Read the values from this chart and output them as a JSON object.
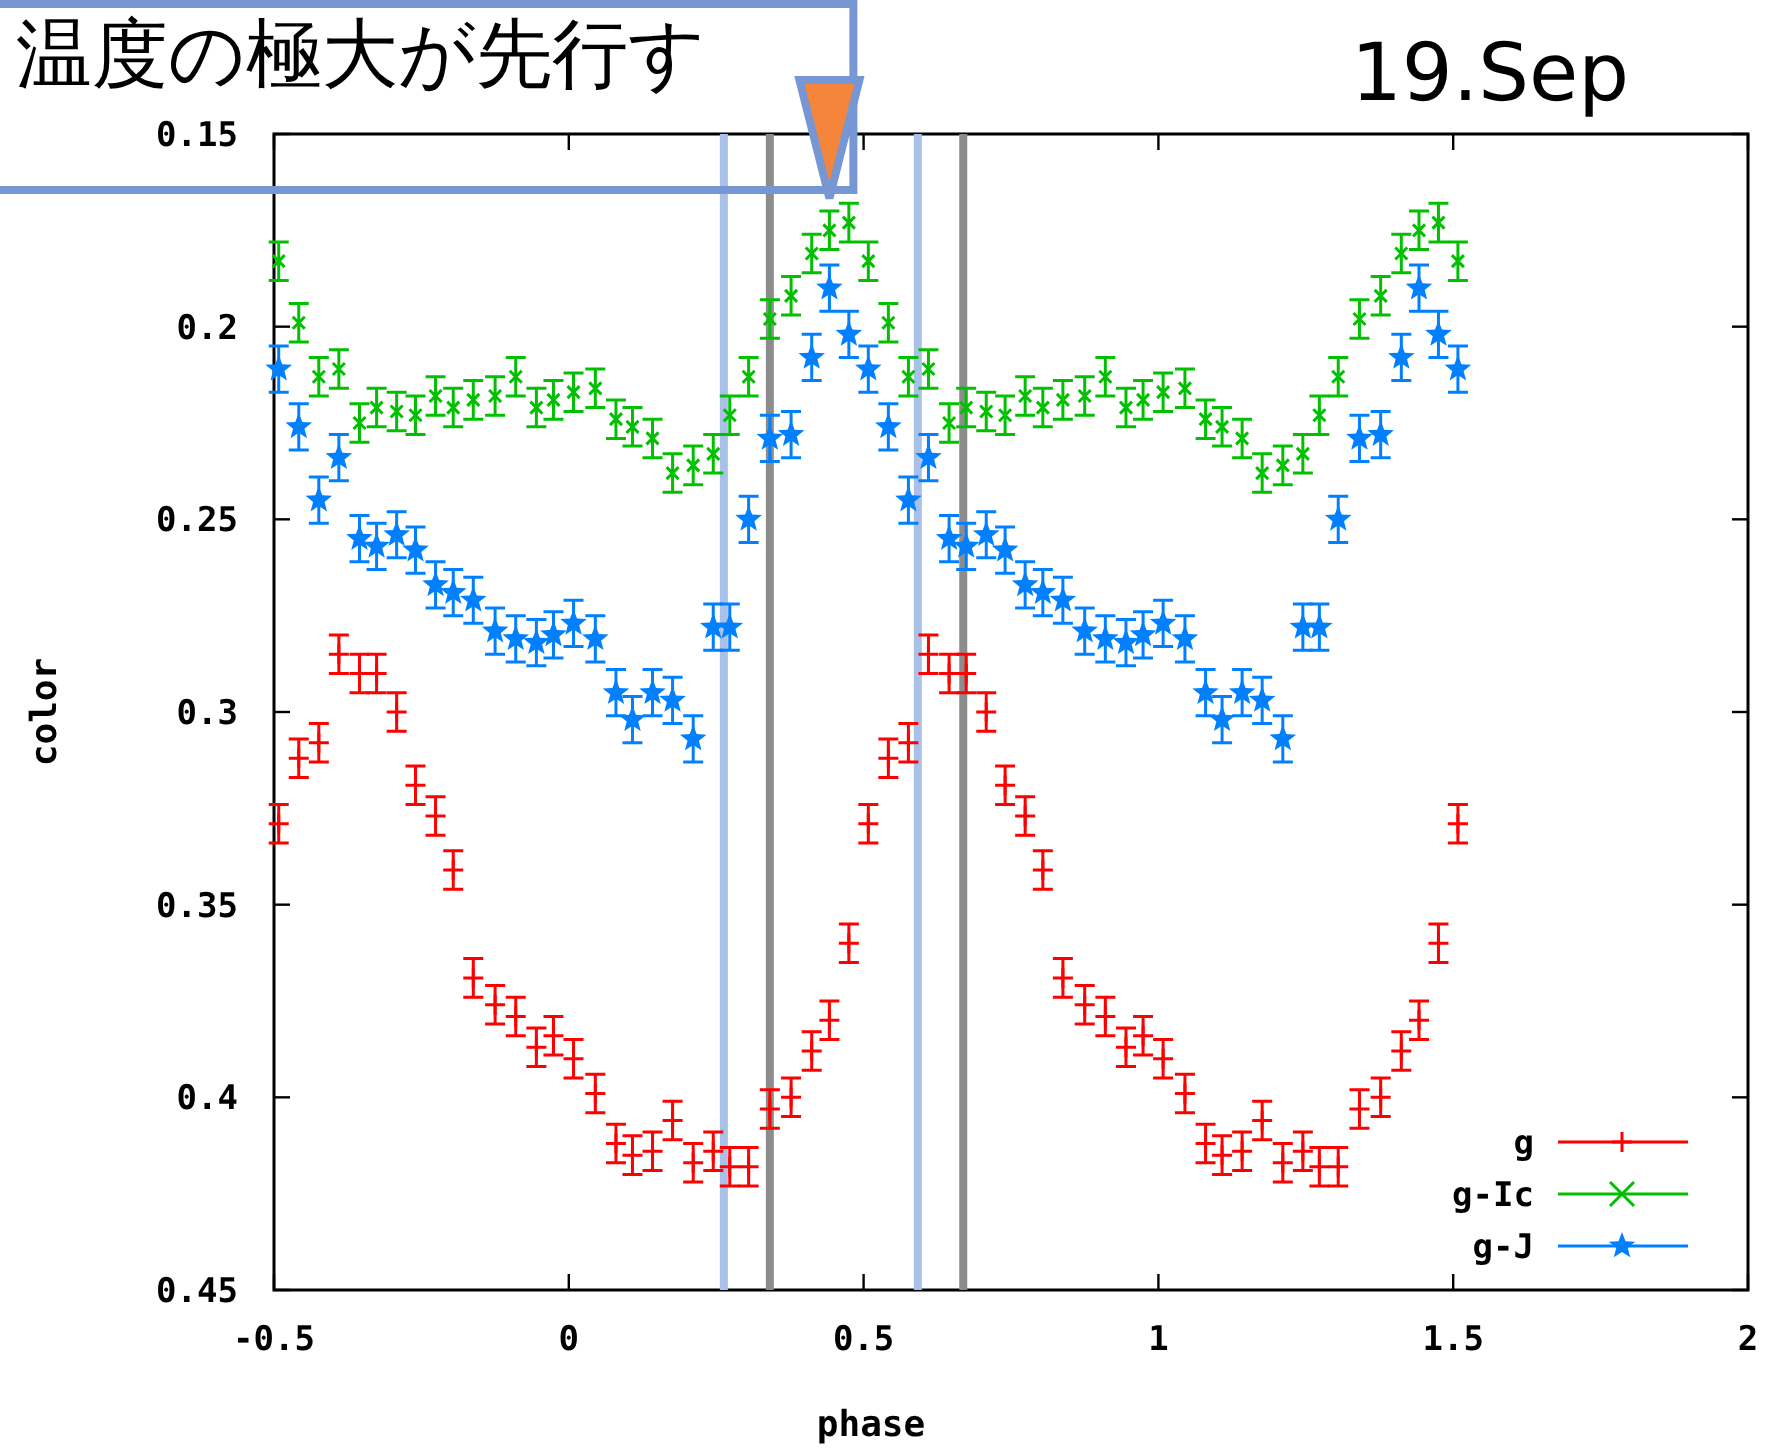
{
  "chart_data": {
    "type": "scatter",
    "xlabel": "phase",
    "ylabel": "color",
    "annotations": [
      "19.Sep",
      {
        "text": "温度の極大が先行す",
        "x": 0.442,
        "y": 0.175
      }
    ],
    "xlim": [
      -0.5,
      2
    ],
    "ylim": [
      0.45,
      0.15
    ],
    "xticks": [
      -0.5,
      0,
      0.5,
      1,
      1.5,
      2
    ],
    "yticks": [
      0.15,
      0.2,
      0.25,
      0.3,
      0.35,
      0.4,
      0.45
    ],
    "legend": "bottom right",
    "ref_lines": [
      {
        "axis": "x",
        "value": 0.263,
        "color": "#a9c0e8"
      },
      {
        "axis": "x",
        "value": 0.341,
        "color": "#8c8c8c"
      },
      {
        "axis": "x",
        "value": 0.592,
        "color": "#a9c0e8"
      },
      {
        "axis": "x",
        "value": 0.669,
        "color": "#8c8c8c"
      }
    ],
    "series": [
      {
        "name": "g",
        "color": "#ff0000",
        "marker": "cross",
        "x": [
          -0.492,
          -0.458,
          -0.424,
          -0.39,
          -0.355,
          -0.326,
          -0.292,
          -0.26,
          -0.226,
          -0.196,
          -0.162,
          -0.125,
          -0.09,
          -0.055,
          -0.026,
          0.008,
          0.045,
          0.08,
          0.108,
          0.142,
          0.176,
          0.211,
          0.245,
          0.273,
          0.305,
          0.341,
          0.377,
          0.412,
          0.442,
          0.475,
          0.508,
          0.542,
          0.576,
          0.61,
          0.645,
          0.674,
          0.708,
          0.74,
          0.774,
          0.804,
          0.838,
          0.875,
          0.91,
          0.945,
          0.974,
          1.008,
          1.045,
          1.08,
          1.108,
          1.142,
          1.176,
          1.211,
          1.245,
          1.273,
          1.305,
          1.341,
          1.377,
          1.412,
          1.442,
          1.475,
          1.508
        ],
        "values": [
          0.329,
          0.312,
          0.308,
          0.285,
          0.29,
          0.29,
          0.3,
          0.319,
          0.327,
          0.341,
          0.369,
          0.376,
          0.379,
          0.387,
          0.384,
          0.39,
          0.399,
          0.412,
          0.415,
          0.414,
          0.406,
          0.417,
          0.414,
          0.418,
          0.418,
          0.403,
          0.4,
          0.388,
          0.38,
          0.36,
          0.329,
          0.312,
          0.308,
          0.285,
          0.29,
          0.29,
          0.3,
          0.319,
          0.327,
          0.341,
          0.369,
          0.376,
          0.379,
          0.387,
          0.384,
          0.39,
          0.399,
          0.412,
          0.415,
          0.414,
          0.406,
          0.417,
          0.414,
          0.418,
          0.418,
          0.403,
          0.4,
          0.388,
          0.38,
          0.36,
          0.329
        ],
        "errors": [
          0.005,
          0.005,
          0.005,
          0.005,
          0.005,
          0.005,
          0.005,
          0.005,
          0.005,
          0.005,
          0.005,
          0.005,
          0.005,
          0.005,
          0.005,
          0.005,
          0.005,
          0.005,
          0.005,
          0.005,
          0.005,
          0.005,
          0.005,
          0.005,
          0.005,
          0.005,
          0.005,
          0.005,
          0.005,
          0.005,
          0.005,
          0.005,
          0.005,
          0.005,
          0.005,
          0.005,
          0.005,
          0.005,
          0.005,
          0.005,
          0.005,
          0.005,
          0.005,
          0.005,
          0.005,
          0.005,
          0.005,
          0.005,
          0.005,
          0.005,
          0.005,
          0.005,
          0.005,
          0.005,
          0.005,
          0.005,
          0.005,
          0.005,
          0.005,
          0.005,
          0.005
        ]
      },
      {
        "name": "g-Ic",
        "color": "#00c000",
        "x": [
          -0.492,
          -0.458,
          -0.424,
          -0.39,
          -0.355,
          -0.326,
          -0.292,
          -0.26,
          -0.226,
          -0.196,
          -0.162,
          -0.125,
          -0.09,
          -0.055,
          -0.026,
          0.008,
          0.045,
          0.08,
          0.108,
          0.142,
          0.176,
          0.211,
          0.245,
          0.273,
          0.305,
          0.341,
          0.377,
          0.412,
          0.442,
          0.475,
          0.508,
          0.542,
          0.576,
          0.61,
          0.645,
          0.674,
          0.708,
          0.74,
          0.774,
          0.804,
          0.838,
          0.875,
          0.91,
          0.945,
          0.974,
          1.008,
          1.045,
          1.08,
          1.108,
          1.142,
          1.176,
          1.211,
          1.245,
          1.273,
          1.305,
          1.341,
          1.377,
          1.412,
          1.442,
          1.475,
          1.508
        ],
        "values": [
          0.183,
          0.199,
          0.213,
          0.211,
          0.225,
          0.221,
          0.222,
          0.223,
          0.218,
          0.221,
          0.219,
          0.218,
          0.213,
          0.221,
          0.219,
          0.217,
          0.216,
          0.224,
          0.226,
          0.229,
          0.238,
          0.236,
          0.233,
          0.223,
          0.213,
          0.198,
          0.192,
          0.181,
          0.175,
          0.173,
          0.183,
          0.199,
          0.213,
          0.211,
          0.225,
          0.221,
          0.222,
          0.223,
          0.218,
          0.221,
          0.219,
          0.218,
          0.213,
          0.221,
          0.219,
          0.217,
          0.216,
          0.224,
          0.226,
          0.229,
          0.238,
          0.236,
          0.233,
          0.223,
          0.213,
          0.198,
          0.192,
          0.181,
          0.175,
          0.173,
          0.183
        ],
        "errors": [
          0.005,
          0.005,
          0.005,
          0.005,
          0.005,
          0.005,
          0.005,
          0.005,
          0.005,
          0.005,
          0.005,
          0.005,
          0.005,
          0.005,
          0.005,
          0.005,
          0.005,
          0.005,
          0.005,
          0.005,
          0.005,
          0.005,
          0.005,
          0.005,
          0.005,
          0.005,
          0.005,
          0.005,
          0.005,
          0.005,
          0.005,
          0.005,
          0.005,
          0.005,
          0.005,
          0.005,
          0.005,
          0.005,
          0.005,
          0.005,
          0.005,
          0.005,
          0.005,
          0.005,
          0.005,
          0.005,
          0.005,
          0.005,
          0.005,
          0.005,
          0.005,
          0.005,
          0.005,
          0.005,
          0.005,
          0.005,
          0.005,
          0.005,
          0.005,
          0.005,
          0.005
        ]
      },
      {
        "name": "g-J",
        "color": "#0080ff",
        "marker": "star",
        "x": [
          -0.492,
          -0.458,
          -0.424,
          -0.39,
          -0.355,
          -0.326,
          -0.292,
          -0.26,
          -0.226,
          -0.196,
          -0.162,
          -0.125,
          -0.09,
          -0.055,
          -0.026,
          0.008,
          0.045,
          0.08,
          0.108,
          0.142,
          0.176,
          0.211,
          0.245,
          0.273,
          0.305,
          0.341,
          0.377,
          0.412,
          0.442,
          0.475,
          0.508,
          0.542,
          0.576,
          0.61,
          0.645,
          0.674,
          0.708,
          0.74,
          0.774,
          0.804,
          0.838,
          0.875,
          0.91,
          0.945,
          0.974,
          1.008,
          1.045,
          1.08,
          1.108,
          1.142,
          1.176,
          1.211,
          1.245,
          1.273,
          1.305,
          1.341,
          1.377,
          1.412,
          1.442,
          1.475,
          1.508
        ],
        "values": [
          0.211,
          0.226,
          0.245,
          0.234,
          0.255,
          0.257,
          0.254,
          0.258,
          0.267,
          0.269,
          0.271,
          0.279,
          0.281,
          0.282,
          0.28,
          0.277,
          0.281,
          0.295,
          0.302,
          0.295,
          0.297,
          0.307,
          0.278,
          0.278,
          0.25,
          0.229,
          0.228,
          0.208,
          0.19,
          0.202,
          0.211,
          0.226,
          0.245,
          0.234,
          0.255,
          0.257,
          0.254,
          0.258,
          0.267,
          0.269,
          0.271,
          0.279,
          0.281,
          0.282,
          0.28,
          0.277,
          0.281,
          0.295,
          0.302,
          0.295,
          0.297,
          0.307,
          0.278,
          0.278,
          0.25,
          0.229,
          0.228,
          0.208,
          0.19,
          0.202,
          0.211
        ],
        "errors": [
          0.006,
          0.006,
          0.006,
          0.006,
          0.006,
          0.006,
          0.006,
          0.006,
          0.006,
          0.006,
          0.006,
          0.006,
          0.006,
          0.006,
          0.006,
          0.006,
          0.006,
          0.006,
          0.006,
          0.006,
          0.006,
          0.006,
          0.006,
          0.006,
          0.006,
          0.006,
          0.006,
          0.006,
          0.006,
          0.006,
          0.006,
          0.006,
          0.006,
          0.006,
          0.006,
          0.006,
          0.006,
          0.006,
          0.006,
          0.006,
          0.006,
          0.006,
          0.006,
          0.006,
          0.006,
          0.006,
          0.006,
          0.006,
          0.006,
          0.006,
          0.006,
          0.006,
          0.006,
          0.006,
          0.006,
          0.006,
          0.006,
          0.006,
          0.006,
          0.006,
          0.006
        ]
      }
    ]
  }
}
